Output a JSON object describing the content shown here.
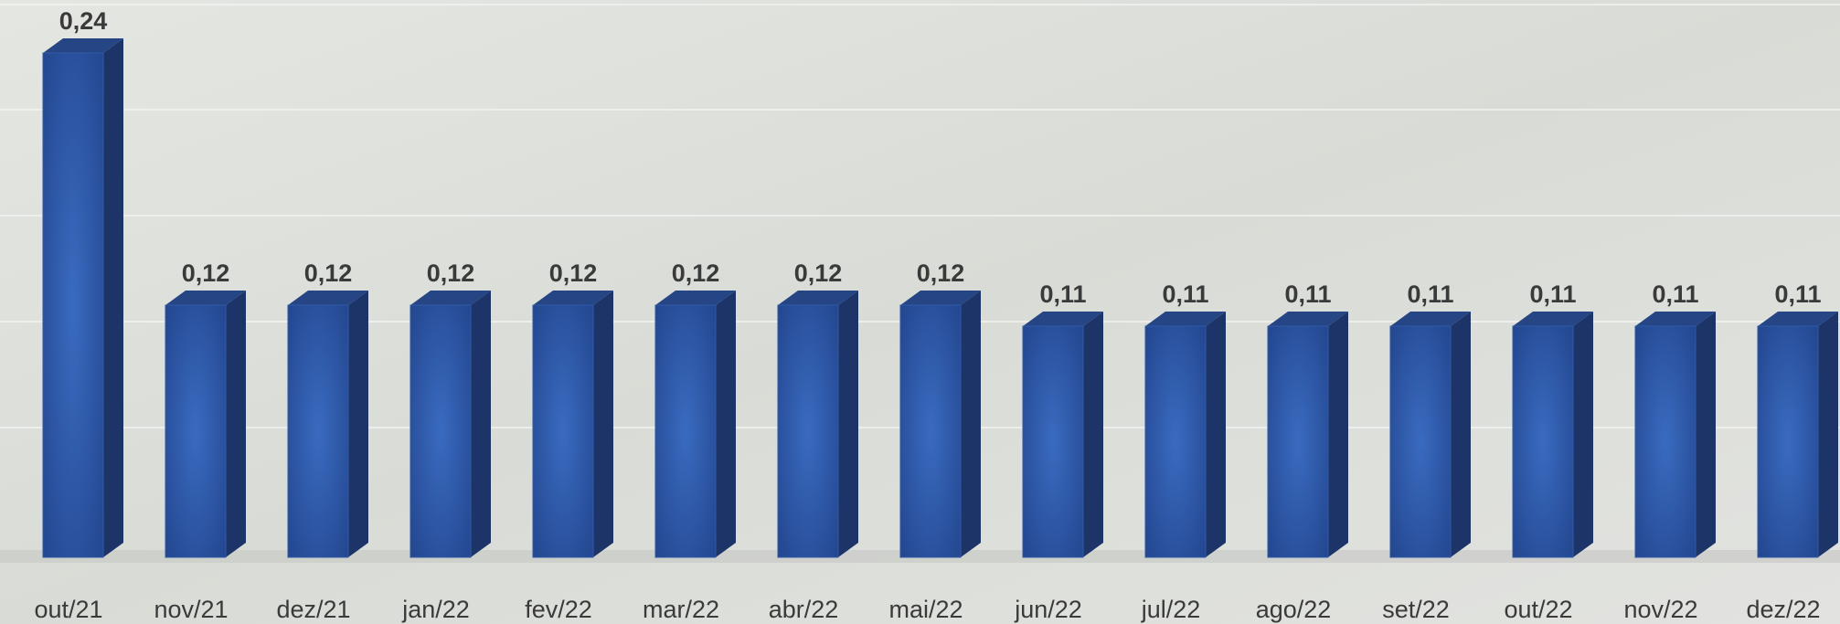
{
  "chart_data": {
    "type": "bar3d",
    "categories": [
      "out/21",
      "nov/21",
      "dez/21",
      "jan/22",
      "fev/22",
      "mar/22",
      "abr/22",
      "mai/22",
      "jun/22",
      "jul/22",
      "ago/22",
      "set/22",
      "out/22",
      "nov/22",
      "dez/22"
    ],
    "values": [
      0.24,
      0.12,
      0.12,
      0.12,
      0.12,
      0.12,
      0.12,
      0.12,
      0.11,
      0.11,
      0.11,
      0.11,
      0.11,
      0.11,
      0.11
    ],
    "value_labels": [
      "0,24",
      "0,12",
      "0,12",
      "0,12",
      "0,12",
      "0,12",
      "0,12",
      "0,12",
      "0,11",
      "0,11",
      "0,11",
      "0,11",
      "0,11",
      "0,11",
      "0,11"
    ],
    "color": "#2f5aa8"
  }
}
